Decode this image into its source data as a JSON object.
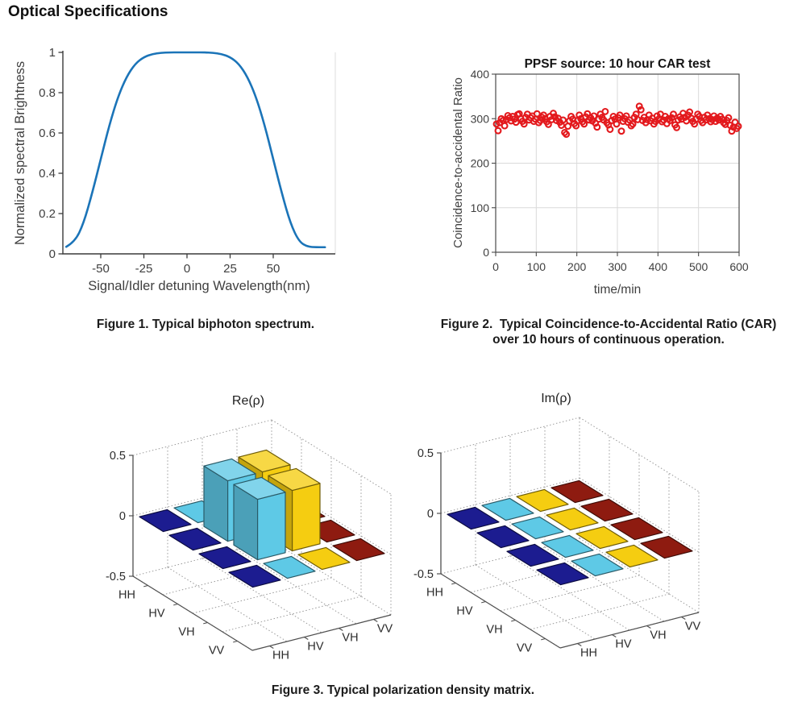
{
  "page": {
    "heading": "Optical Specifications"
  },
  "figures": {
    "fig1_caption": "Figure 1. Typical biphoton spectrum.",
    "fig2_caption_line1": "Figure 2.  Typical Coincidence-to-Accidental Ratio (CAR)",
    "fig2_caption_line2": "over 10 hours of continuous operation.",
    "fig3_caption": "Figure 3. Typical polarization density matrix."
  },
  "chart_data": [
    {
      "id": "biphoton-spectrum",
      "type": "line",
      "title": "",
      "xlabel": "Signal/Idler detuning Wavelength(nm)",
      "ylabel": "Normalized spectral Brightness",
      "xticks": [
        -50,
        -25,
        0,
        25,
        50
      ],
      "yticks": [
        0,
        0.2,
        0.4,
        0.6,
        0.8,
        1
      ],
      "xlim": [
        -72,
        86
      ],
      "ylim": [
        0,
        1.04
      ],
      "grid": false,
      "line_color": "#1b74b8",
      "x": [
        -70,
        -65,
        -60,
        -55,
        -50,
        -45,
        -40,
        -35,
        -30,
        -25,
        -20,
        -15,
        -10,
        -5,
        0,
        5,
        10,
        15,
        20,
        25,
        30,
        35,
        40,
        45,
        50,
        55,
        60,
        65,
        70,
        75,
        80
      ],
      "y": [
        0.035,
        0.06,
        0.15,
        0.3,
        0.47,
        0.64,
        0.78,
        0.88,
        0.944,
        0.977,
        0.992,
        0.998,
        1,
        1,
        1,
        1,
        1,
        0.998,
        0.992,
        0.977,
        0.944,
        0.88,
        0.78,
        0.64,
        0.47,
        0.3,
        0.15,
        0.06,
        0.035,
        0.033,
        0.033
      ]
    },
    {
      "id": "car-test",
      "type": "scatter",
      "title": "PPSF source: 10 hour CAR test",
      "xlabel": "time/min",
      "ylabel": "Coincidence-to-accidental Ratio",
      "xticks": [
        0,
        100,
        200,
        300,
        400,
        500,
        600
      ],
      "yticks": [
        0,
        100,
        200,
        300,
        400
      ],
      "xlim": [
        0,
        600
      ],
      "ylim": [
        0,
        400
      ],
      "grid": true,
      "marker": "open-circle",
      "marker_color": "#e3191d",
      "x_start": 2,
      "x_step": 4,
      "y": [
        288,
        273,
        291,
        300,
        296,
        284,
        298,
        307,
        302,
        295,
        305,
        299,
        292,
        309,
        311,
        300,
        294,
        288,
        303,
        310,
        297,
        302,
        306,
        294,
        299,
        311,
        291,
        296,
        303,
        308,
        300,
        293,
        287,
        305,
        298,
        312,
        304,
        296,
        301,
        292,
        285,
        297,
        269,
        265,
        283,
        295,
        305,
        299,
        289,
        284,
        296,
        308,
        300,
        293,
        288,
        304,
        311,
        297,
        302,
        295,
        306,
        290,
        281,
        299,
        310,
        303,
        297,
        316,
        291,
        286,
        276,
        296,
        305,
        299,
        288,
        302,
        308,
        272,
        294,
        300,
        306,
        292,
        297,
        284,
        288,
        303,
        310,
        298,
        328,
        320,
        296,
        303,
        291,
        298,
        308,
        295,
        301,
        288,
        294,
        306,
        299,
        310,
        293,
        297,
        305,
        289,
        300,
        296,
        302,
        310,
        286,
        280,
        297,
        304,
        299,
        312,
        303,
        295,
        308,
        315,
        301,
        294,
        288,
        299,
        310,
        305,
        296,
        291,
        303,
        297,
        308,
        300,
        293,
        298,
        306,
        294,
        301,
        297,
        305,
        299,
        291,
        287,
        296,
        302,
        285,
        272,
        281,
        292,
        278,
        283
      ]
    },
    {
      "id": "polarization-density-matrix",
      "type": "bar3d-pair",
      "row_labels": [
        "HH",
        "HV",
        "VH",
        "VV"
      ],
      "col_labels": [
        "HH",
        "HV",
        "VH",
        "VV"
      ],
      "zticks": [
        0.5,
        0,
        -0.5
      ],
      "zlim": [
        -0.5,
        0.5
      ],
      "column_colors": [
        "#1c1c90",
        "#5ec9e6",
        "#f5cd11",
        "#8e1b10"
      ],
      "panels": [
        {
          "title": "Re(ρ)",
          "matrix": [
            [
              0,
              0,
              0,
              0
            ],
            [
              0,
              0.5,
              0.5,
              0
            ],
            [
              0,
              0.5,
              0.5,
              0
            ],
            [
              0,
              0,
              0,
              0
            ]
          ]
        },
        {
          "title": "Im(ρ)",
          "matrix": [
            [
              0,
              0,
              0,
              0
            ],
            [
              0,
              0,
              0,
              0
            ],
            [
              0,
              0,
              0,
              0
            ],
            [
              0,
              0,
              0,
              0
            ]
          ]
        }
      ]
    }
  ]
}
